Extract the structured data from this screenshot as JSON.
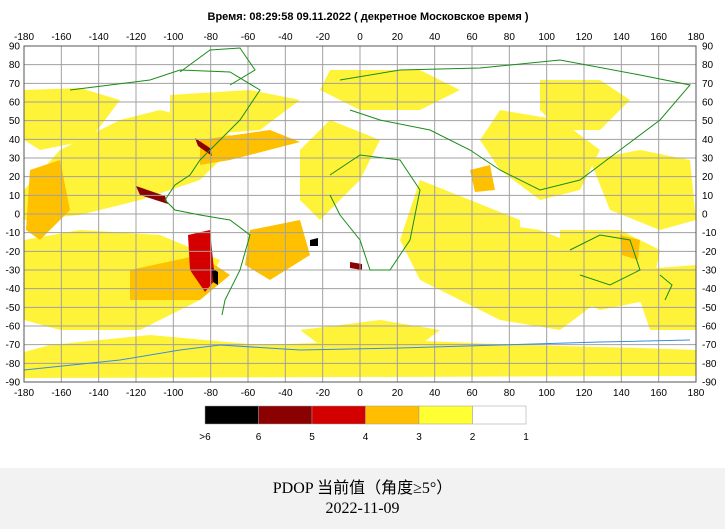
{
  "header": {
    "title": "Время: 08:29:58   09.11.2022  ( декретное Московское время )"
  },
  "map": {
    "lon_ticks": [
      "-180",
      "-160",
      "-140",
      "-120",
      "-100",
      "-80",
      "-60",
      "-40",
      "-20",
      "0",
      "20",
      "40",
      "60",
      "80",
      "100",
      "120",
      "140",
      "160",
      "180"
    ],
    "lat_ticks": [
      "90",
      "80",
      "70",
      "60",
      "50",
      "40",
      "30",
      "20",
      "10",
      "0",
      "-10",
      "-20",
      "-30",
      "-40",
      "-50",
      "-60",
      "-70",
      "-80",
      "-90"
    ],
    "lon_range": [
      -180,
      180
    ],
    "lat_range": [
      -90,
      90
    ],
    "grid": true,
    "colors": {
      "grid": "#a0a0a0",
      "coastline": "#1a8c1a",
      "antarctic_coast": "#3c8cdc",
      "level_2": "#fff33a",
      "level_3": "#ffc000",
      "level_4": "#e00000",
      "level_5": "#8b0000",
      "level_6": "#000000"
    }
  },
  "legend": {
    "labels": [
      ">6",
      "6",
      "5",
      "4",
      "3",
      "2",
      "1"
    ],
    "colors": [
      "#000000",
      "#8b0000",
      "#d40000",
      "#ffbf00",
      "#ffff33",
      "#ffffff"
    ]
  },
  "caption": {
    "title": "PDOP 当前值（角度≥5°）",
    "date": "2022-11-09"
  }
}
